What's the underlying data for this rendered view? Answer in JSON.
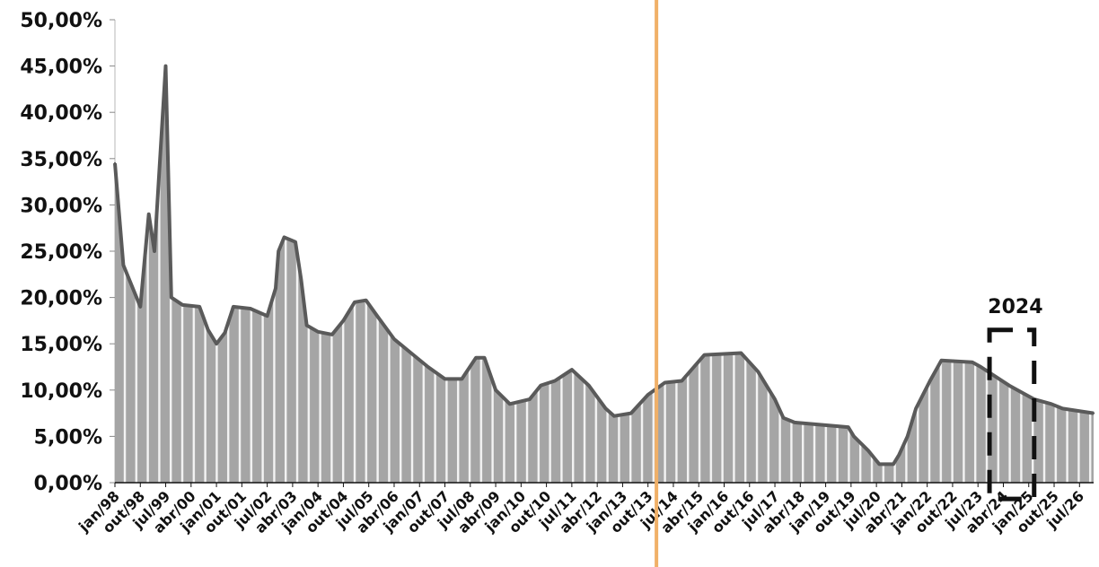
{
  "chart_data": {
    "type": "area",
    "title": "",
    "xlabel": "",
    "ylabel": "",
    "ylim": [
      0,
      0.5
    ],
    "yticks": [
      "0,00%",
      "5,00%",
      "10,00%",
      "15,00%",
      "20,00%",
      "25,00%",
      "30,00%",
      "35,00%",
      "40,00%",
      "45,00%",
      "50,00%"
    ],
    "x_start": "jan/98",
    "x_end": "dez/26",
    "xtick_labels": [
      "jan/98",
      "out/98",
      "jul/99",
      "abr/00",
      "jan/01",
      "out/01",
      "jul/02",
      "abr/03",
      "jan/04",
      "out/04",
      "jul/05",
      "abr/06",
      "jan/07",
      "out/07",
      "jul/08",
      "abr/09",
      "jan/10",
      "out/10",
      "jul/11",
      "abr/12",
      "jan/13",
      "out/13",
      "jul/14",
      "abr/15",
      "jan/16",
      "out/16",
      "jul/17",
      "abr/18",
      "jan/19",
      "out/19",
      "jul/20",
      "abr/21",
      "jan/22",
      "out/22",
      "jul/23",
      "abr/24",
      "jan/25",
      "out/25",
      "jul/26"
    ],
    "series": [
      {
        "values": [
          [
            "jan/98",
            0.345
          ],
          [
            "abr/98",
            0.235
          ],
          [
            "out/98",
            0.19
          ],
          [
            "jan/99",
            0.29
          ],
          [
            "mar/99",
            0.25
          ],
          [
            "jul/99",
            0.45
          ],
          [
            "set/99",
            0.2
          ],
          [
            "jan/00",
            0.192
          ],
          [
            "jul/00",
            0.19
          ],
          [
            "out/00",
            0.165
          ],
          [
            "jan/01",
            0.15
          ],
          [
            "abr/01",
            0.162
          ],
          [
            "jul/01",
            0.19
          ],
          [
            "jan/02",
            0.188
          ],
          [
            "jul/02",
            0.18
          ],
          [
            "out/02",
            0.21
          ],
          [
            "nov/02",
            0.25
          ],
          [
            "jan/03",
            0.265
          ],
          [
            "mai/03",
            0.26
          ],
          [
            "jul/03",
            0.22
          ],
          [
            "set/03",
            0.17
          ],
          [
            "jan/04",
            0.163
          ],
          [
            "jun/04",
            0.16
          ],
          [
            "out/04",
            0.175
          ],
          [
            "fev/05",
            0.195
          ],
          [
            "jun/05",
            0.197
          ],
          [
            "out/05",
            0.18
          ],
          [
            "abr/06",
            0.155
          ],
          [
            "out/06",
            0.14
          ],
          [
            "abr/07",
            0.125
          ],
          [
            "out/07",
            0.112
          ],
          [
            "abr/08",
            0.112
          ],
          [
            "set/08",
            0.135
          ],
          [
            "dez/08",
            0.135
          ],
          [
            "abr/09",
            0.1
          ],
          [
            "set/09",
            0.085
          ],
          [
            "abr/10",
            0.09
          ],
          [
            "ago/10",
            0.105
          ],
          [
            "jan/11",
            0.11
          ],
          [
            "jul/11",
            0.122
          ],
          [
            "jan/12",
            0.105
          ],
          [
            "jul/12",
            0.08
          ],
          [
            "out/12",
            0.072
          ],
          [
            "abr/13",
            0.075
          ],
          [
            "out/13",
            0.095
          ],
          [
            "abr/14",
            0.108
          ],
          [
            "out/14",
            0.11
          ],
          [
            "jun/15",
            0.138
          ],
          [
            "jul/16",
            0.14
          ],
          [
            "jan/17",
            0.12
          ],
          [
            "jul/17",
            0.09
          ],
          [
            "out/17",
            0.07
          ],
          [
            "fev/18",
            0.065
          ],
          [
            "set/19",
            0.06
          ],
          [
            "nov/19",
            0.05
          ],
          [
            "abr/20",
            0.035
          ],
          [
            "ago/20",
            0.02
          ],
          [
            "jan/21",
            0.02
          ],
          [
            "mar/21",
            0.03
          ],
          [
            "jun/21",
            0.05
          ],
          [
            "set/21",
            0.08
          ],
          [
            "fev/22",
            0.11
          ],
          [
            "jun/22",
            0.132
          ],
          [
            "mai/23",
            0.13
          ],
          [
            "ago/23",
            0.125
          ],
          [
            "jan/24",
            0.115
          ],
          [
            "jun/24",
            0.105
          ],
          [
            "dez/24",
            0.095
          ],
          [
            "mar/25",
            0.09
          ],
          [
            "set/25",
            0.085
          ],
          [
            "jan/26",
            0.08
          ],
          [
            "dez/26",
            0.075
          ]
        ]
      }
    ],
    "annotations": [
      {
        "type": "vertical_line",
        "x": "jan/14",
        "color": "#f0b068"
      },
      {
        "type": "dashed_box",
        "label": "2024",
        "x_from": "jan/24",
        "x_to": "jan/25",
        "color": "#111111"
      }
    ],
    "grid": false,
    "colors": {
      "area": "#a5a5a5",
      "line": "#5a5a5a",
      "stripe": "#ffffff",
      "axis": "#111111"
    }
  }
}
